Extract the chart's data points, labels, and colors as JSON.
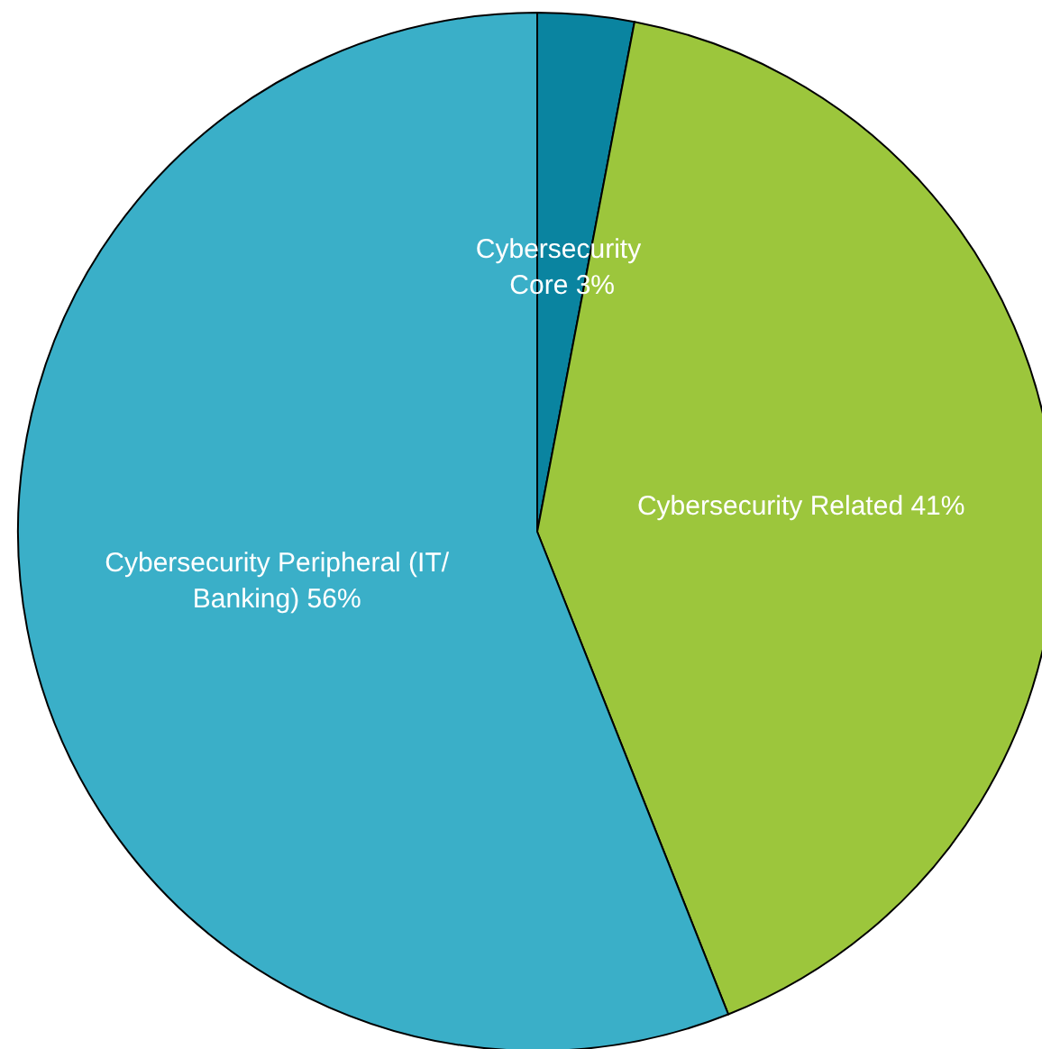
{
  "chart_data": {
    "type": "pie",
    "categories": [
      "Cybersecurity Core",
      "Cybersecurity Related",
      "Cybersecurity Peripheral (IT/Banking)"
    ],
    "values": [
      3,
      41,
      56
    ],
    "colors": [
      "#0a84a0",
      "#9cc63c",
      "#3aafc8"
    ],
    "value_labels": [
      "3%",
      "41%",
      "56%"
    ],
    "legend": false
  }
}
